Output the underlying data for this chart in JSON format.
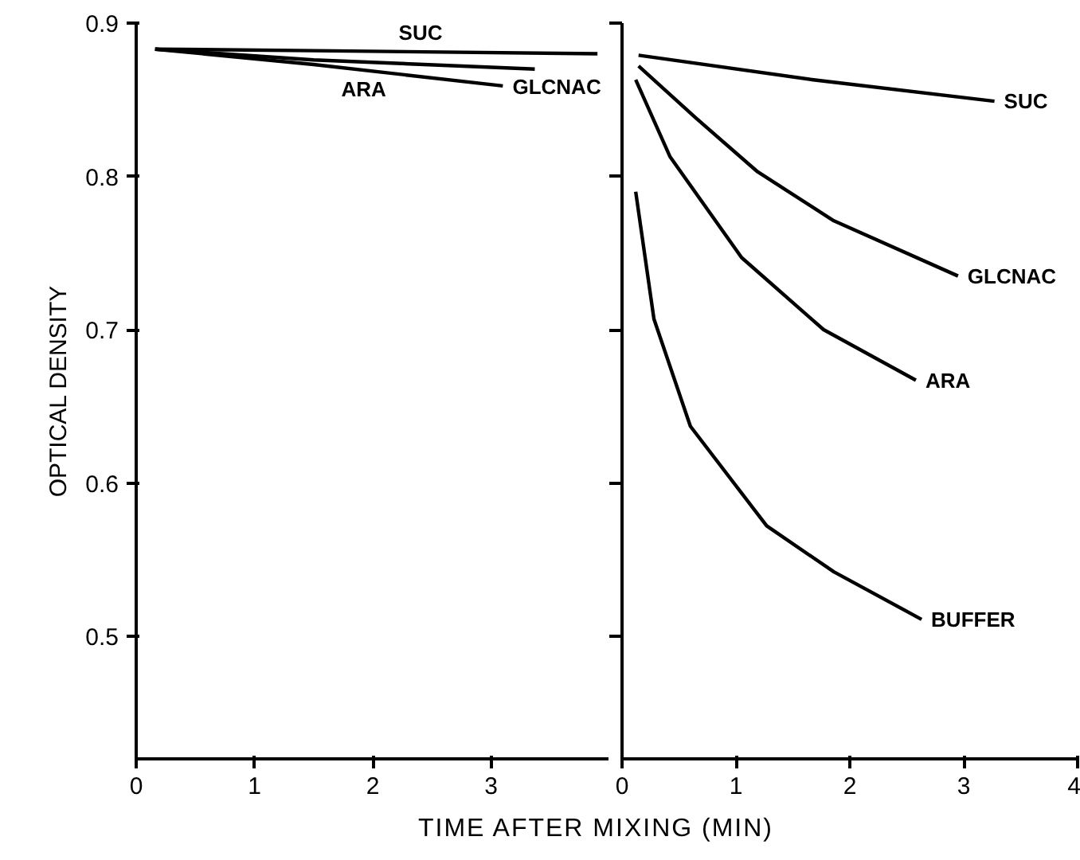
{
  "chart_data": [
    {
      "type": "line",
      "ylabel": "OPTICAL DENSITY",
      "xlabel": "TIME AFTER MIXING (MIN)",
      "xlim": [
        0,
        4
      ],
      "ylim": [
        0.42,
        0.9
      ],
      "xticks": [
        0,
        1,
        2,
        3
      ],
      "yticks": [
        0.5,
        0.6,
        0.7,
        0.8,
        0.9
      ],
      "grid": false,
      "series": [
        {
          "name": "SUC",
          "color": "#000000",
          "x": [
            0.16,
            1.5,
            3.9
          ],
          "values": [
            0.883,
            0.882,
            0.88
          ]
        },
        {
          "name": "GLCNAC",
          "color": "#000000",
          "x": [
            0.16,
            1.5,
            3.37
          ],
          "values": [
            0.883,
            0.876,
            0.87
          ]
        },
        {
          "name": "ARA",
          "color": "#000000",
          "x": [
            0.16,
            1.5,
            3.1
          ],
          "values": [
            0.883,
            0.873,
            0.859
          ]
        }
      ]
    },
    {
      "type": "line",
      "xlim": [
        0,
        4
      ],
      "ylim": [
        0.42,
        0.9
      ],
      "xticks": [
        0,
        1,
        2,
        3,
        4
      ],
      "yticks": [
        0.5,
        0.6,
        0.7,
        0.8,
        0.9
      ],
      "tick_labels": "x",
      "grid": false,
      "series": [
        {
          "name": "SUC",
          "color": "#000000",
          "x": [
            0.145,
            1.68,
            3.27
          ],
          "values": [
            0.879,
            0.863,
            0.849
          ]
        },
        {
          "name": "GLCNAC",
          "color": "#000000",
          "x": [
            0.145,
            0.65,
            1.19,
            1.86,
            2.95
          ],
          "values": [
            0.872,
            0.838,
            0.803,
            0.771,
            0.735
          ]
        },
        {
          "name": "ARA",
          "color": "#000000",
          "x": [
            0.12,
            0.42,
            1.05,
            1.77,
            2.58
          ],
          "values": [
            0.863,
            0.813,
            0.747,
            0.7,
            0.667
          ]
        },
        {
          "name": "BUFFER",
          "color": "#000000",
          "x": [
            0.12,
            0.28,
            0.6,
            1.27,
            1.86,
            2.63
          ],
          "values": [
            0.79,
            0.707,
            0.637,
            0.572,
            0.542,
            0.511
          ]
        }
      ]
    }
  ]
}
